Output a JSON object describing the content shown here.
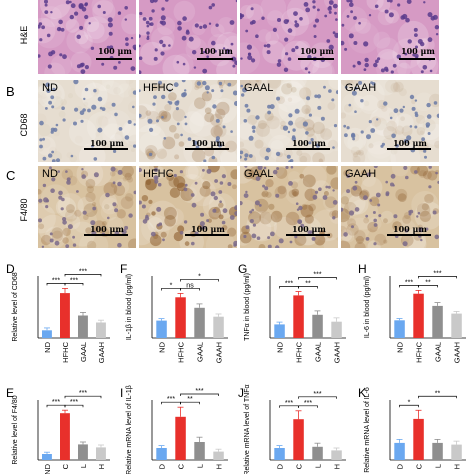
{
  "colors": {
    "nd": "#6aa8f0",
    "hfhc": "#e8302b",
    "gaal": "#8f8f8f",
    "gaah": "#c9c9c9",
    "he_bg": "#d69ac4",
    "he_nuclei": "#5a3b8c",
    "cd68_bg": "#e6ddd0",
    "cd68_nuclei": "#6a7aa6",
    "f480_bg": "#d8c2a0",
    "f480_nuclei": "#7a6a8a"
  },
  "rows": {
    "he": {
      "label": "H&E",
      "tiles": [
        "",
        "",
        "",
        ""
      ],
      "scale": "100 μm"
    },
    "cd68": {
      "letter": "B",
      "label": "CD68",
      "tiles": [
        "ND",
        "HFHC",
        "GAAL",
        "GAAH"
      ],
      "scale": "100 μm"
    },
    "f480": {
      "letter": "C",
      "label": "F4/80",
      "tiles": [
        "ND",
        "HFHC",
        "GAAL",
        "GAAH"
      ],
      "scale": "100 μm"
    }
  },
  "chart_data": [
    {
      "id": "D",
      "type": "bar",
      "ylabel": "Relative level of CD68",
      "categories": [
        "ND",
        "HFHC",
        "GAAL",
        "GAAH"
      ],
      "values": [
        1.0,
        5.8,
        2.9,
        2.0
      ],
      "errors": [
        0.3,
        0.6,
        0.4,
        0.3
      ],
      "ylim": [
        0,
        8
      ],
      "significance": [
        "***",
        "***",
        "***"
      ]
    },
    {
      "id": "F",
      "type": "bar",
      "ylabel": "IL-1β in blood (pg/ml)",
      "categories": [
        "ND",
        "HFHC",
        "GAAL",
        "GAAH"
      ],
      "values": [
        0.45,
        1.05,
        0.78,
        0.55
      ],
      "errors": [
        0.05,
        0.1,
        0.1,
        0.07
      ],
      "ylim": [
        0,
        1.6
      ],
      "significance": [
        "*",
        "ns",
        "*"
      ]
    },
    {
      "id": "G",
      "type": "bar",
      "ylabel": "TNFα in blood (pg/ml)",
      "categories": [
        "ND",
        "HFHC",
        "GAAL",
        "GAAH"
      ],
      "values": [
        3.5,
        11.0,
        6.0,
        4.2
      ],
      "errors": [
        0.6,
        1.0,
        1.0,
        1.0
      ],
      "ylim": [
        0,
        16
      ],
      "significance": [
        "***",
        "**",
        "***"
      ]
    },
    {
      "id": "H",
      "type": "bar",
      "ylabel": "IL-6 in blood (pg/ml)",
      "categories": [
        "ND",
        "HFHC",
        "GAAL",
        "GAAH"
      ],
      "values": [
        80,
        200,
        145,
        110
      ],
      "errors": [
        8,
        15,
        15,
        10
      ],
      "ylim": [
        0,
        280
      ],
      "significance": [
        "***",
        "**",
        "***"
      ]
    },
    {
      "id": "E",
      "type": "bar",
      "ylabel": "Relative level of F4/80",
      "categories": [
        "ND",
        "C",
        "L",
        "H"
      ],
      "values": [
        1.0,
        7.8,
        2.6,
        2.1
      ],
      "errors": [
        0.3,
        0.5,
        0.4,
        0.4
      ],
      "ylim": [
        0,
        10
      ],
      "significance": [
        "***",
        "***",
        "***"
      ]
    },
    {
      "id": "I",
      "type": "bar",
      "ylabel": "Relative mRNA level of IL-1β",
      "categories": [
        "D",
        "C",
        "L",
        "H"
      ],
      "values": [
        1.0,
        3.6,
        1.5,
        0.7
      ],
      "errors": [
        0.2,
        0.8,
        0.4,
        0.2
      ],
      "ylim": [
        0,
        5
      ],
      "significance": [
        "***",
        "**",
        "***"
      ]
    },
    {
      "id": "J",
      "type": "bar",
      "ylabel": "Relative mRNA level of TNFα",
      "categories": [
        "D",
        "C",
        "L",
        "H"
      ],
      "values": [
        1.0,
        3.4,
        1.1,
        0.8
      ],
      "errors": [
        0.2,
        0.7,
        0.3,
        0.2
      ],
      "ylim": [
        0,
        5
      ],
      "significance": [
        "***",
        "***",
        "***"
      ]
    },
    {
      "id": "K",
      "type": "bar",
      "ylabel": "Relative mRNA level of IL-6",
      "categories": [
        "D",
        "C",
        "L",
        "H"
      ],
      "values": [
        1.0,
        2.4,
        1.0,
        0.9
      ],
      "errors": [
        0.2,
        0.5,
        0.2,
        0.2
      ],
      "ylim": [
        0,
        3.5
      ],
      "significance": [
        "*",
        "**"
      ]
    }
  ]
}
